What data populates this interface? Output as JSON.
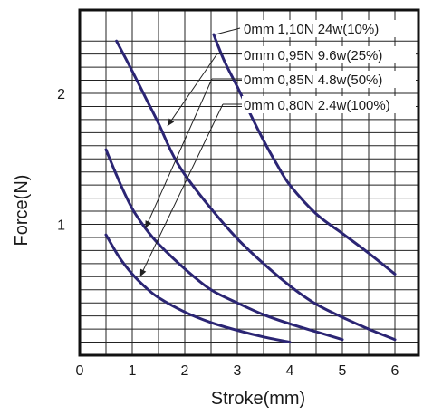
{
  "chart_data": {
    "type": "line",
    "xlabel": "Stroke(mm)",
    "ylabel": "Force(N)",
    "xlim": [
      0,
      6.35
    ],
    "ylim": [
      0,
      2.45
    ],
    "x_ticks": [
      "0",
      "1",
      "2",
      "3",
      "4",
      "5",
      "6"
    ],
    "y_ticks": [
      "1",
      "2"
    ],
    "x_tick_values": [
      0,
      1,
      2,
      3,
      4,
      5,
      6
    ],
    "y_tick_values": [
      1,
      2
    ],
    "grid": true,
    "legend_placement": "top-right",
    "series_color": "#2b2574",
    "series": [
      {
        "name": "0mm 1,10N 24w(10%)",
        "x": [
          2.55,
          2.75,
          3.0,
          3.25,
          3.5,
          3.75,
          4.0,
          4.5,
          5.0,
          5.5,
          6.0
        ],
        "y": [
          2.45,
          2.25,
          2.05,
          1.84,
          1.64,
          1.46,
          1.3,
          1.08,
          0.93,
          0.78,
          0.62
        ]
      },
      {
        "name": "0mm 0,95N 9.6w(25%)",
        "x": [
          0.7,
          1.0,
          1.25,
          1.5,
          1.75,
          2.0,
          2.5,
          3.0,
          3.5,
          4.0,
          4.5,
          5.0,
          5.5,
          6.0
        ],
        "y": [
          2.4,
          2.17,
          1.97,
          1.77,
          1.55,
          1.38,
          1.12,
          0.89,
          0.7,
          0.53,
          0.39,
          0.29,
          0.2,
          0.12
        ]
      },
      {
        "name": "0mm 0,85N 4.8w(50%)",
        "x": [
          0.5,
          0.75,
          1.0,
          1.25,
          1.5,
          2.0,
          2.5,
          3.0,
          3.5,
          4.0,
          4.5,
          5.0
        ],
        "y": [
          1.57,
          1.33,
          1.12,
          0.97,
          0.85,
          0.66,
          0.5,
          0.4,
          0.31,
          0.24,
          0.18,
          0.12
        ]
      },
      {
        "name": "0mm 0,80N 2.4w(100%)",
        "x": [
          0.5,
          0.75,
          1.0,
          1.25,
          1.5,
          2.0,
          2.5,
          3.0,
          3.5,
          4.0
        ],
        "y": [
          0.92,
          0.75,
          0.62,
          0.52,
          0.44,
          0.33,
          0.25,
          0.19,
          0.14,
          0.1
        ]
      }
    ],
    "annotations": [
      {
        "series": 0,
        "text": "0mm 1,10N 24w(10%)",
        "target": [
          2.55,
          2.45
        ]
      },
      {
        "series": 1,
        "text": "0mm  0,95N 9.6w(25%)",
        "target": [
          1.67,
          1.75
        ]
      },
      {
        "series": 2,
        "text": "0mm 0,85N 4.8w(50%)",
        "target": [
          1.25,
          0.97
        ]
      },
      {
        "series": 3,
        "text": "0mm 0,80N 2.4w(100%)",
        "target": [
          1.15,
          0.6
        ]
      }
    ]
  }
}
